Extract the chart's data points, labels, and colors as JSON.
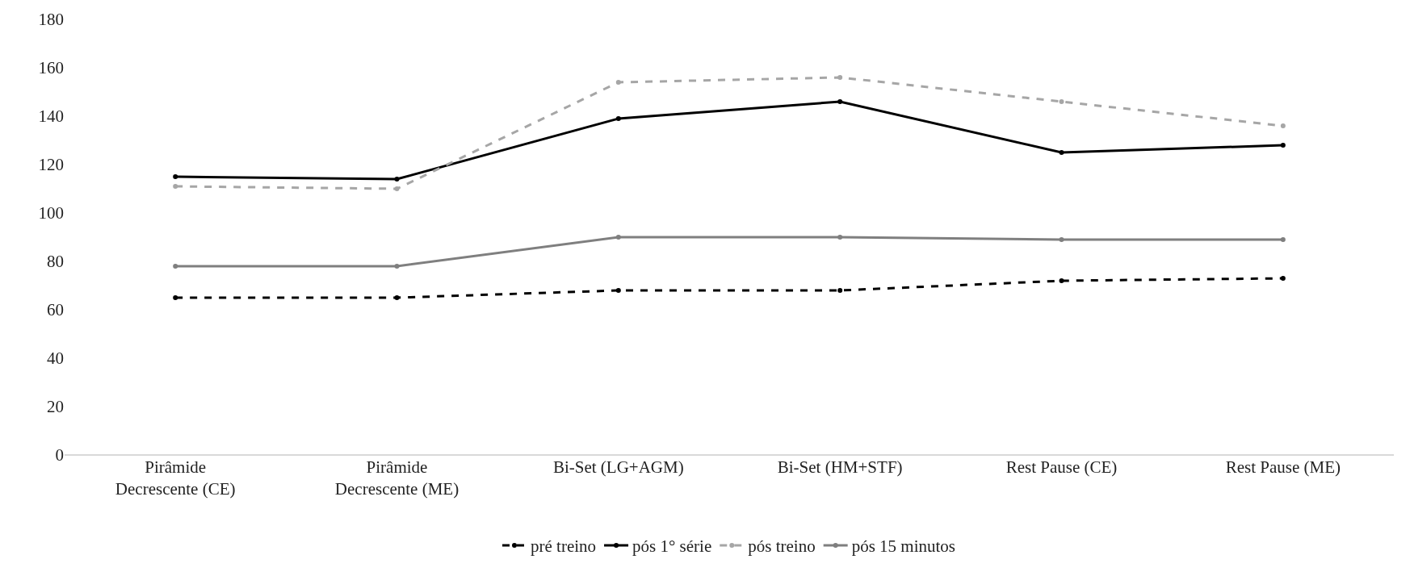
{
  "chart_data": {
    "type": "line",
    "categories": [
      "Pirâmide Decrescente (CE)",
      "Pirâmide Decrescente (ME)",
      "Bi-Set (LG+AGM)",
      "Bi-Set (HM+STF)",
      "Rest Pause (CE)",
      "Rest Pause (ME)"
    ],
    "series": [
      {
        "name": "pré treino",
        "color": "#000000",
        "line_style": "dashed",
        "values": [
          65,
          65,
          68,
          68,
          72,
          73
        ]
      },
      {
        "name": "pós 1° série",
        "color": "#000000",
        "line_style": "solid",
        "values": [
          115,
          114,
          139,
          146,
          125,
          128
        ]
      },
      {
        "name": "pós treino",
        "color": "#a6a6a6",
        "line_style": "dashed",
        "values": [
          111,
          110,
          154,
          156,
          146,
          136
        ]
      },
      {
        "name": "pós 15 minutos",
        "color": "#7f7f7f",
        "line_style": "solid",
        "values": [
          78,
          78,
          90,
          90,
          89,
          89
        ]
      }
    ],
    "ylim": [
      0,
      180
    ],
    "yticks": [
      0,
      20,
      40,
      60,
      80,
      100,
      120,
      140,
      160,
      180
    ],
    "legend": "bottom",
    "marker": "circle"
  }
}
